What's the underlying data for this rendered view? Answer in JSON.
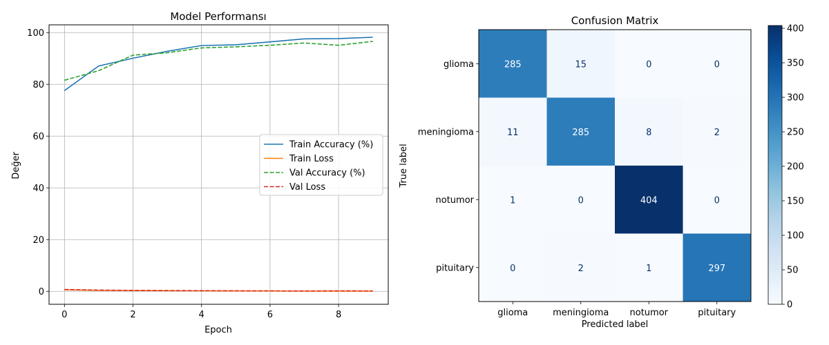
{
  "chart_data": [
    {
      "type": "line",
      "title": "Model Performansı",
      "xlabel": "Epoch",
      "ylabel": "Değer",
      "xlim": [
        -0.45,
        9.45
      ],
      "ylim": [
        -5,
        103
      ],
      "xticks": [
        0,
        2,
        4,
        6,
        8
      ],
      "yticks": [
        0,
        20,
        40,
        60,
        80,
        100
      ],
      "grid": true,
      "legend_position": "center-right",
      "x": [
        0,
        1,
        2,
        3,
        4,
        5,
        6,
        7,
        8,
        9
      ],
      "series": [
        {
          "name": "Train Accuracy (%)",
          "color": "#1f77b4",
          "dash": "solid",
          "values": [
            77.6,
            87.1,
            90.1,
            92.8,
            95.0,
            95.3,
            96.4,
            97.6,
            97.7,
            98.2
          ]
        },
        {
          "name": "Train Loss",
          "color": "#ff7f0e",
          "dash": "solid",
          "values": [
            0.6,
            0.4,
            0.3,
            0.25,
            0.2,
            0.18,
            0.15,
            0.1,
            0.1,
            0.08
          ]
        },
        {
          "name": "Val Accuracy (%)",
          "color": "#2ca02c",
          "dash": "dashed",
          "values": [
            81.6,
            85.3,
            91.3,
            92.2,
            94.1,
            94.5,
            95.1,
            96.0,
            95.1,
            96.6
          ]
        },
        {
          "name": "Val Loss",
          "color": "#d62728",
          "dash": "dashed",
          "values": [
            0.7,
            0.5,
            0.35,
            0.3,
            0.25,
            0.2,
            0.18,
            0.15,
            0.2,
            0.15
          ]
        }
      ]
    },
    {
      "type": "heatmap",
      "title": "Confusion Matrix",
      "xlabel": "Predicted label",
      "ylabel": "True label",
      "x_categories": [
        "glioma",
        "meningioma",
        "notumor",
        "pituitary"
      ],
      "y_categories": [
        "glioma",
        "meningioma",
        "notumor",
        "pituitary"
      ],
      "values": [
        [
          285,
          15,
          0,
          0
        ],
        [
          11,
          285,
          8,
          2
        ],
        [
          1,
          0,
          404,
          0
        ],
        [
          0,
          2,
          1,
          297
        ]
      ],
      "colormap": "Blues",
      "colorbar_range": [
        0,
        404
      ],
      "colorbar_ticks": [
        0,
        50,
        100,
        150,
        200,
        250,
        300,
        350,
        400
      ]
    }
  ]
}
